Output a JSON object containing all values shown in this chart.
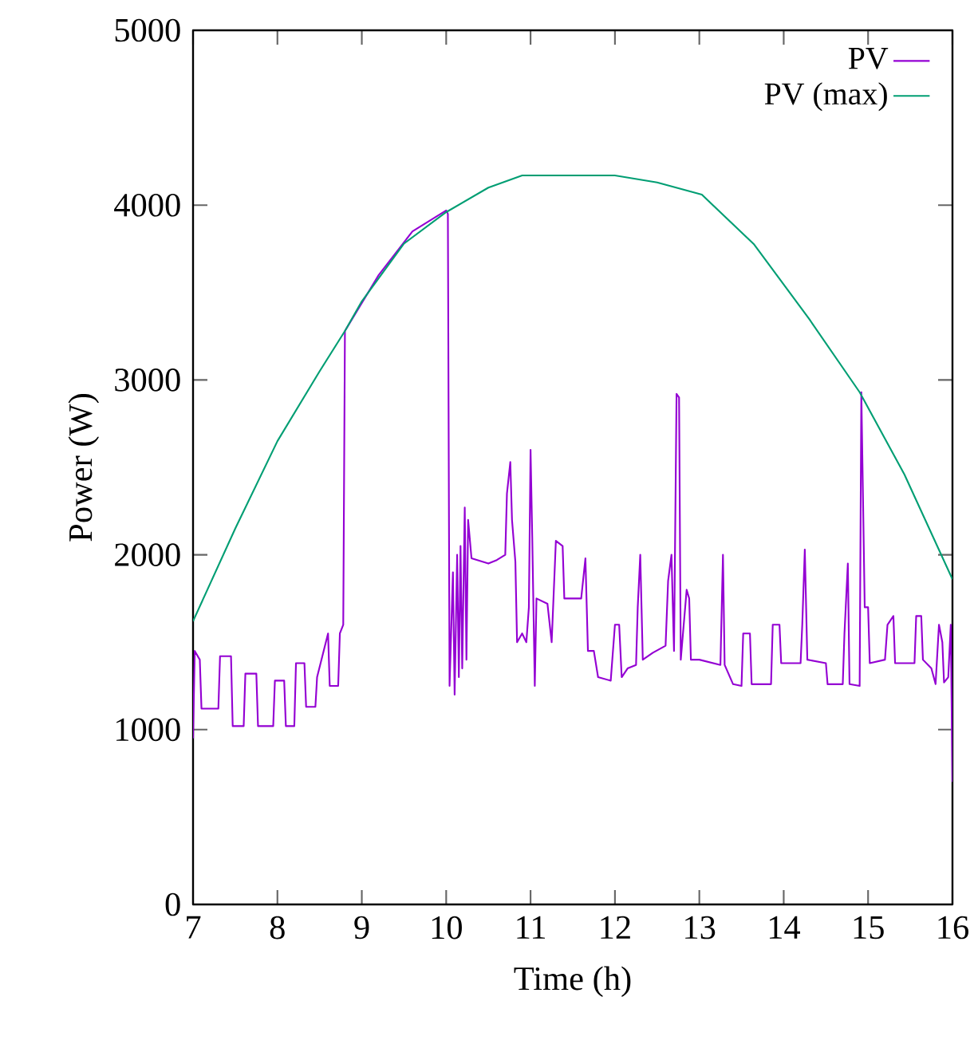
{
  "chart_data": {
    "type": "line",
    "xlabel": "Time (h)",
    "ylabel": "Power (W)",
    "xlim": [
      7,
      16
    ],
    "ylim": [
      0,
      5000
    ],
    "xticks": [
      7,
      8,
      9,
      10,
      11,
      12,
      13,
      14,
      15,
      16
    ],
    "yticks": [
      0,
      1000,
      2000,
      3000,
      4000,
      5000
    ],
    "grid": false,
    "legend": "top right",
    "marker": "none",
    "line_style": "solid",
    "series": [
      {
        "name": "PV",
        "color": "#9400d3",
        "x": [
          7.0,
          7.02,
          7.08,
          7.1,
          7.3,
          7.32,
          7.45,
          7.47,
          7.6,
          7.62,
          7.75,
          7.77,
          7.95,
          7.97,
          8.08,
          8.1,
          8.2,
          8.22,
          8.32,
          8.34,
          8.45,
          8.47,
          8.6,
          8.62,
          8.72,
          8.74,
          8.78,
          8.8,
          9.2,
          9.6,
          10.0,
          10.02,
          10.04,
          10.08,
          10.1,
          10.13,
          10.15,
          10.17,
          10.19,
          10.22,
          10.24,
          10.26,
          10.3,
          10.5,
          10.6,
          10.7,
          10.72,
          10.76,
          10.78,
          10.82,
          10.84,
          10.9,
          10.95,
          10.98,
          11.0,
          11.02,
          11.05,
          11.07,
          11.2,
          11.25,
          11.3,
          11.38,
          11.4,
          11.6,
          11.65,
          11.68,
          11.75,
          11.8,
          11.95,
          12.0,
          12.05,
          12.08,
          12.15,
          12.25,
          12.27,
          12.3,
          12.33,
          12.45,
          12.6,
          12.63,
          12.67,
          12.7,
          12.73,
          12.76,
          12.78,
          12.85,
          12.88,
          12.9,
          13.0,
          13.25,
          13.28,
          13.3,
          13.4,
          13.5,
          13.52,
          13.6,
          13.62,
          13.85,
          13.87,
          13.95,
          13.97,
          14.2,
          14.22,
          14.25,
          14.28,
          14.5,
          14.52,
          14.7,
          14.72,
          14.76,
          14.78,
          14.9,
          14.92,
          14.96,
          15.0,
          15.02,
          15.2,
          15.23,
          15.3,
          15.32,
          15.55,
          15.57,
          15.63,
          15.65,
          15.75,
          15.8,
          15.84,
          15.88,
          15.9,
          15.95,
          15.98,
          16.0
        ],
        "values": [
          950,
          1450,
          1400,
          1120,
          1120,
          1420,
          1420,
          1020,
          1020,
          1320,
          1320,
          1020,
          1020,
          1280,
          1280,
          1020,
          1020,
          1380,
          1380,
          1130,
          1130,
          1300,
          1550,
          1250,
          1250,
          1550,
          1600,
          3280,
          3600,
          3850,
          3970,
          3950,
          1250,
          1900,
          1200,
          2000,
          1300,
          2050,
          1350,
          2270,
          1400,
          2200,
          1980,
          1950,
          1970,
          2000,
          2350,
          2530,
          2200,
          1960,
          1500,
          1550,
          1500,
          1700,
          2600,
          2100,
          1250,
          1750,
          1720,
          1500,
          2080,
          2050,
          1750,
          1750,
          1980,
          1450,
          1450,
          1300,
          1280,
          1600,
          1600,
          1300,
          1350,
          1370,
          1700,
          2000,
          1400,
          1440,
          1480,
          1850,
          2000,
          1450,
          2920,
          2900,
          1400,
          1800,
          1750,
          1400,
          1400,
          1370,
          2000,
          1370,
          1260,
          1250,
          1550,
          1550,
          1260,
          1260,
          1600,
          1600,
          1380,
          1380,
          1600,
          2030,
          1400,
          1380,
          1260,
          1260,
          1550,
          1950,
          1260,
          1250,
          2930,
          1700,
          1700,
          1380,
          1400,
          1600,
          1650,
          1380,
          1380,
          1650,
          1650,
          1400,
          1350,
          1260,
          1600,
          1500,
          1270,
          1300,
          1600,
          700
        ]
      },
      {
        "name": "PV (max)",
        "color": "#009e73",
        "x": [
          7,
          7.5,
          8,
          8.5,
          8.8,
          9,
          9.5,
          10,
          10.5,
          10.9,
          11.5,
          12,
          12.5,
          13.03,
          13.65,
          14.3,
          14.9,
          15.43,
          16
        ],
        "values": [
          1620,
          2150,
          2650,
          3050,
          3280,
          3450,
          3780,
          3960,
          4100,
          4170,
          4170,
          4170,
          4130,
          4060,
          3775,
          3350,
          2930,
          2460,
          1860
        ]
      }
    ]
  }
}
